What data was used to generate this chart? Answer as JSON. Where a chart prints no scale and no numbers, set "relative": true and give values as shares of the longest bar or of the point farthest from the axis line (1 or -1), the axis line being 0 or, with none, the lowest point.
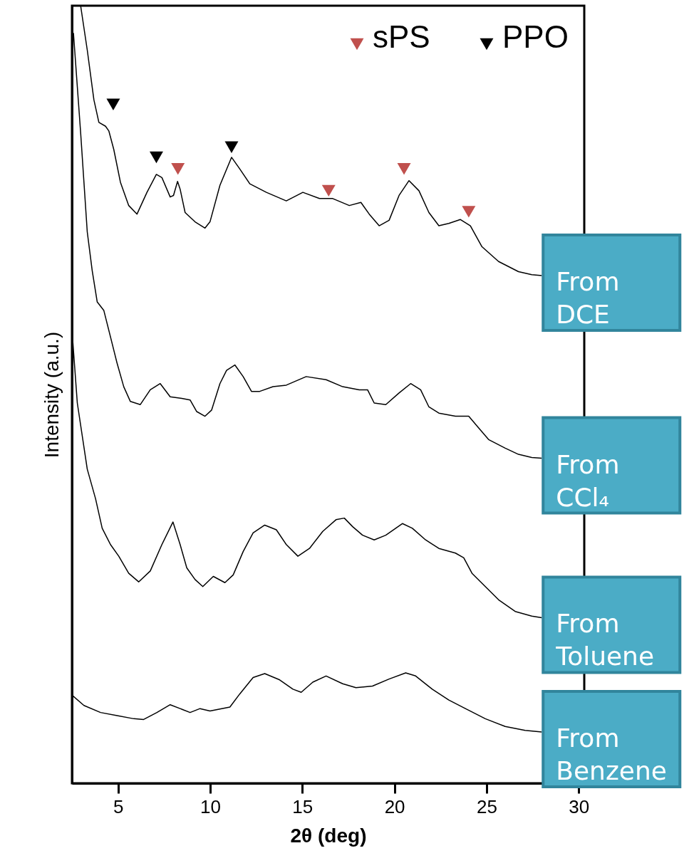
{
  "chart_data": {
    "type": "line",
    "xlabel": "2θ (deg)",
    "ylabel": "Intensity (a.u.)",
    "relative": true,
    "xlim": [
      2.5,
      30.3
    ],
    "xticks": [
      5,
      10,
      15,
      20,
      25,
      30
    ],
    "grid": false,
    "legend": "top right",
    "series": [
      {
        "name": "From DCE",
        "color": "#000000",
        "x": [
          2.97,
          3.33,
          3.69,
          3.96,
          4.32,
          4.5,
          4.77,
          5.13,
          5.58,
          6.03,
          6.57,
          7.08,
          7.38,
          7.83,
          8.01,
          8.23,
          8.37,
          8.64,
          9.18,
          9.72,
          9.99,
          10.53,
          11.16,
          11.61,
          12.15,
          13.05,
          14.13,
          15.03,
          15.93,
          16.65,
          17.55,
          18.18,
          18.63,
          19.17,
          19.71,
          20.25,
          20.79,
          21.33,
          21.87,
          22.41,
          22.95,
          23.58,
          24.12,
          24.75,
          25.65,
          26.73,
          27.45,
          27.99
        ],
        "values": [
          1.0,
          0.943,
          0.879,
          0.85,
          0.845,
          0.839,
          0.815,
          0.773,
          0.743,
          0.732,
          0.76,
          0.783,
          0.779,
          0.754,
          0.756,
          0.774,
          0.764,
          0.734,
          0.722,
          0.714,
          0.722,
          0.769,
          0.805,
          0.79,
          0.771,
          0.76,
          0.749,
          0.76,
          0.752,
          0.752,
          0.743,
          0.747,
          0.732,
          0.717,
          0.724,
          0.756,
          0.775,
          0.762,
          0.734,
          0.717,
          0.72,
          0.725,
          0.717,
          0.69,
          0.671,
          0.658,
          0.654,
          0.653
        ]
      },
      {
        "name": "From CCl₄",
        "color": "#000000",
        "x": [
          2.58,
          2.97,
          3.33,
          3.6,
          3.87,
          4.23,
          4.59,
          4.95,
          5.31,
          5.67,
          6.21,
          6.75,
          7.29,
          7.83,
          8.46,
          8.91,
          9.27,
          9.72,
          10.08,
          10.53,
          10.89,
          11.34,
          11.79,
          12.24,
          12.69,
          13.41,
          14.13,
          15.21,
          16.29,
          17.19,
          18.09,
          18.54,
          18.9,
          19.53,
          20.25,
          20.88,
          21.42,
          21.87,
          22.41,
          23.31,
          24.03,
          24.57,
          25.11,
          26.01,
          26.73,
          27.45,
          27.99
        ],
        "values": [
          0.965,
          0.837,
          0.709,
          0.659,
          0.619,
          0.608,
          0.574,
          0.54,
          0.51,
          0.491,
          0.487,
          0.506,
          0.514,
          0.497,
          0.495,
          0.493,
          0.478,
          0.472,
          0.48,
          0.514,
          0.531,
          0.538,
          0.523,
          0.504,
          0.504,
          0.51,
          0.512,
          0.523,
          0.519,
          0.51,
          0.506,
          0.506,
          0.489,
          0.487,
          0.502,
          0.514,
          0.506,
          0.484,
          0.476,
          0.472,
          0.472,
          0.457,
          0.442,
          0.431,
          0.423,
          0.419,
          0.418
        ]
      },
      {
        "name": "From Toluene",
        "color": "#000000",
        "x": [
          2.5,
          2.79,
          3.33,
          3.78,
          4.14,
          4.59,
          5.04,
          5.58,
          6.12,
          6.75,
          7.38,
          7.98,
          8.37,
          8.73,
          9.18,
          9.6,
          10.17,
          10.8,
          11.25,
          11.79,
          12.33,
          12.96,
          13.59,
          14.13,
          14.76,
          15.39,
          16.11,
          16.83,
          17.28,
          17.73,
          18.27,
          18.9,
          19.53,
          20.43,
          20.97,
          21.69,
          22.41,
          23.31,
          23.76,
          24.21,
          24.93,
          25.65,
          26.55,
          27.45,
          27.99
        ],
        "values": [
          0.583,
          0.489,
          0.404,
          0.366,
          0.328,
          0.307,
          0.292,
          0.27,
          0.259,
          0.273,
          0.307,
          0.336,
          0.307,
          0.277,
          0.262,
          0.253,
          0.266,
          0.258,
          0.268,
          0.298,
          0.322,
          0.332,
          0.326,
          0.307,
          0.292,
          0.302,
          0.324,
          0.339,
          0.341,
          0.33,
          0.319,
          0.313,
          0.319,
          0.334,
          0.328,
          0.313,
          0.302,
          0.296,
          0.29,
          0.27,
          0.253,
          0.236,
          0.221,
          0.215,
          0.213
        ]
      },
      {
        "name": "From Benzene",
        "color": "#000000",
        "x": [
          2.52,
          3.15,
          4.05,
          4.95,
          5.85,
          6.39,
          7.11,
          7.83,
          8.37,
          8.91,
          9.45,
          9.99,
          11.07,
          11.61,
          12.33,
          12.96,
          13.77,
          14.49,
          14.94,
          15.57,
          16.29,
          17.19,
          17.91,
          18.81,
          19.71,
          20.61,
          21.15,
          22.05,
          22.95,
          23.85,
          24.93,
          26.01,
          27.09,
          27.99
        ],
        "values": [
          0.113,
          0.1,
          0.091,
          0.087,
          0.083,
          0.082,
          0.091,
          0.101,
          0.096,
          0.091,
          0.096,
          0.093,
          0.098,
          0.115,
          0.136,
          0.141,
          0.133,
          0.121,
          0.117,
          0.13,
          0.138,
          0.128,
          0.123,
          0.125,
          0.134,
          0.142,
          0.138,
          0.121,
          0.107,
          0.096,
          0.083,
          0.073,
          0.068,
          0.066
        ]
      },
      {
        "name": "sPS",
        "type": "scatter",
        "color": "#c0504d",
        "x": [
          8.25,
          16.43,
          20.52,
          24.03
        ],
        "values": [
          0.79,
          0.762,
          0.79,
          0.735
        ],
        "marker": "triangle"
      },
      {
        "name": "PPO",
        "type": "scatter",
        "color": "#000000",
        "x": [
          4.74,
          7.08,
          11.16
        ],
        "values": [
          0.873,
          0.805,
          0.818
        ],
        "marker": "triangle"
      }
    ]
  }
}
